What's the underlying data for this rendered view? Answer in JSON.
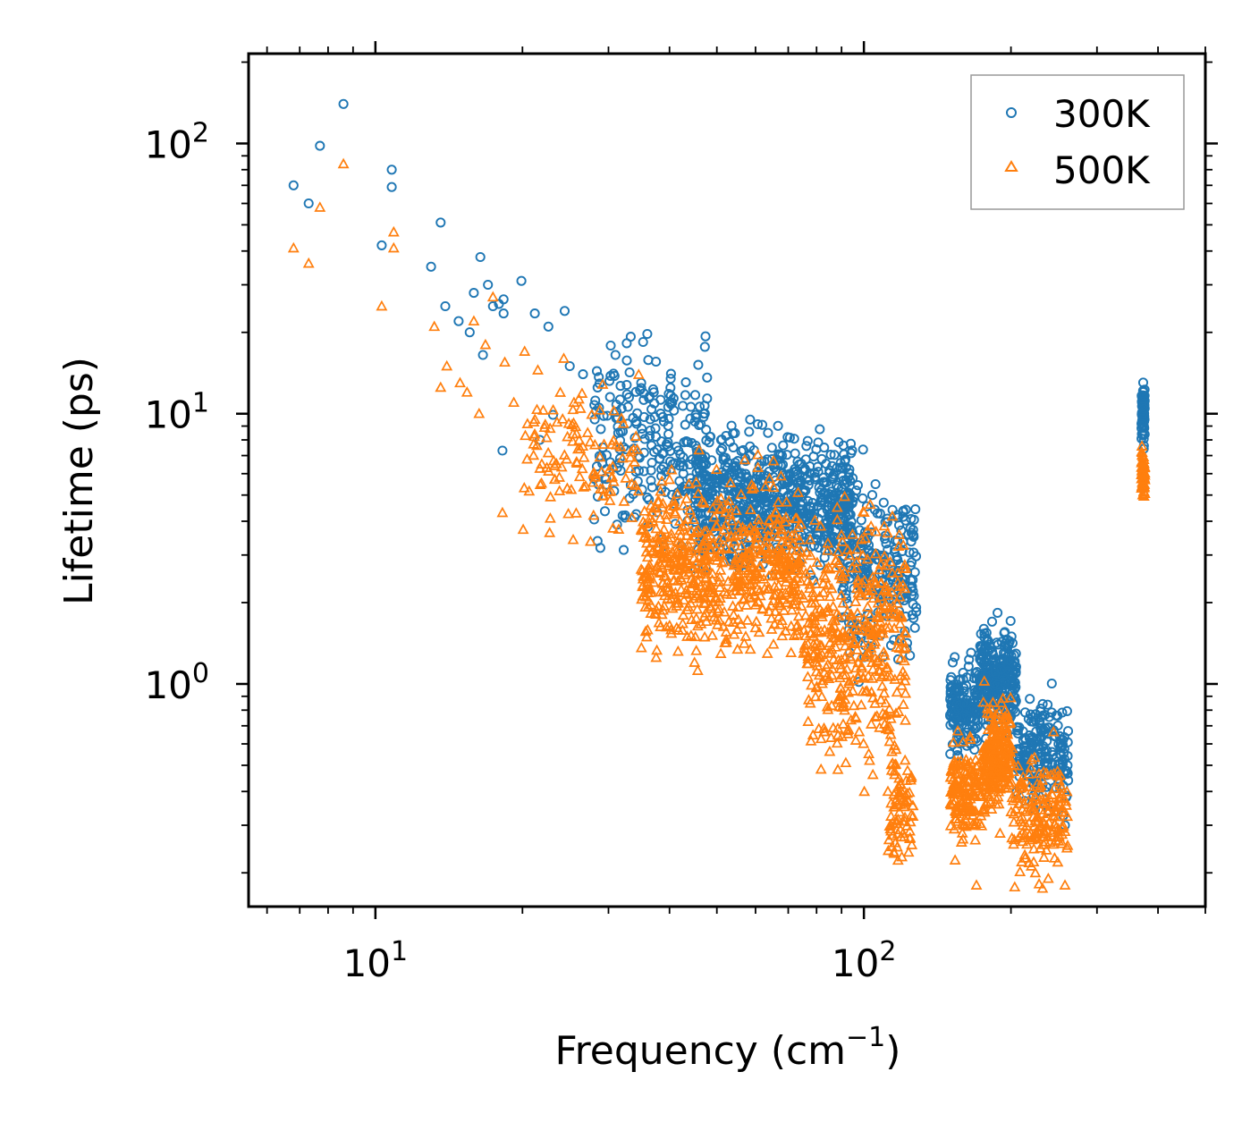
{
  "chart_data": {
    "type": "scatter",
    "title": "",
    "xlabel": "Frequency (cm",
    "xlabel_sup": "−1",
    "xlabel_close": ")",
    "ylabel": "Lifetime (ps)",
    "xscale": "log",
    "yscale": "log",
    "xlim": [
      5.5,
      500
    ],
    "ylim": [
      0.15,
      215
    ],
    "x_ticks": [
      {
        "base": "10",
        "exp": "1",
        "value": 10
      },
      {
        "base": "10",
        "exp": "2",
        "value": 100
      }
    ],
    "y_ticks": [
      {
        "base": "10",
        "exp": "0",
        "value": 1
      },
      {
        "base": "10",
        "exp": "1",
        "value": 10
      },
      {
        "base": "10",
        "exp": "2",
        "value": 100
      }
    ],
    "legend_position": "top-right",
    "series": [
      {
        "name": "300K",
        "marker": "circle",
        "color": "#1f77b4",
        "points": [
          [
            6.8,
            70
          ],
          [
            7.3,
            60
          ],
          [
            7.7,
            98
          ],
          [
            8.6,
            140
          ],
          [
            10.3,
            42
          ],
          [
            10.8,
            80
          ],
          [
            10.8,
            69
          ],
          [
            13.0,
            35
          ],
          [
            13.6,
            51
          ],
          [
            13.9,
            25
          ],
          [
            14.8,
            22
          ],
          [
            15.6,
            20
          ],
          [
            15.9,
            28
          ],
          [
            16.4,
            38
          ],
          [
            16.6,
            16.5
          ],
          [
            17.0,
            30
          ],
          [
            17.4,
            25
          ],
          [
            17.9,
            25.5
          ],
          [
            18.3,
            26.5
          ],
          [
            18.3,
            23.5
          ],
          [
            19.9,
            31
          ],
          [
            21.2,
            23.5
          ],
          [
            22.6,
            21
          ],
          [
            24.4,
            24
          ],
          [
            25.0,
            15
          ],
          [
            26.6,
            14
          ],
          [
            28.5,
            12.5
          ],
          [
            31.0,
            16.5
          ],
          [
            18.2,
            7.3
          ],
          [
            21.7,
            8.0
          ],
          [
            23.1,
            9.9
          ],
          [
            35.0,
            13
          ],
          [
            40.5,
            11
          ],
          [
            47,
            10
          ],
          [
            51,
            8.0
          ],
          [
            58.5,
            7.0
          ],
          [
            68,
            7.0
          ],
          [
            82,
            6.8
          ],
          [
            104,
            5.0
          ],
          [
            152,
            1.2
          ],
          [
            176,
            1.6
          ],
          [
            183,
            1.7
          ],
          [
            228,
            0.55
          ],
          [
            258,
            0.3
          ]
        ],
        "clusters": [
          {
            "x_range": [
              28,
              48
            ],
            "y_center": 7.8,
            "y_spread": 2.4,
            "count": 240
          },
          {
            "x_range": [
              45,
              95
            ],
            "y_center": 4.7,
            "y_spread": 1.8,
            "count": 700
          },
          {
            "x_range": [
              90,
              128
            ],
            "y_center": 2.6,
            "y_spread": 2.2,
            "count": 240
          },
          {
            "x_range": [
              150,
              172
            ],
            "y_center": 0.82,
            "y_spread": 1.45,
            "count": 160
          },
          {
            "x_range": [
              172,
              205
            ],
            "y_center": 1.05,
            "y_spread": 1.55,
            "count": 260
          },
          {
            "x_range": [
              205,
              262
            ],
            "y_center": 0.55,
            "y_spread": 1.6,
            "count": 200
          },
          {
            "x_range": [
              370,
              376
            ],
            "y_center": 10.0,
            "y_spread": 1.3,
            "count": 70
          }
        ]
      },
      {
        "name": "500K",
        "marker": "triangle",
        "color": "#ff7f0e",
        "points": [
          [
            6.8,
            41
          ],
          [
            7.3,
            36
          ],
          [
            7.7,
            58
          ],
          [
            8.6,
            84
          ],
          [
            10.3,
            25
          ],
          [
            10.9,
            47
          ],
          [
            10.9,
            41
          ],
          [
            13.2,
            21
          ],
          [
            13.6,
            12.5
          ],
          [
            14.0,
            15
          ],
          [
            14.9,
            13
          ],
          [
            15.4,
            12
          ],
          [
            15.9,
            22
          ],
          [
            16.3,
            10
          ],
          [
            16.8,
            18
          ],
          [
            17.4,
            27
          ],
          [
            18.2,
            4.3
          ],
          [
            18.4,
            15.5
          ],
          [
            19.2,
            11
          ],
          [
            20.2,
            17
          ],
          [
            21.5,
            14.5
          ],
          [
            22.8,
            4.1
          ],
          [
            24.3,
            16
          ],
          [
            25.5,
            11
          ],
          [
            27.2,
            8.5
          ],
          [
            33.5,
            5.5
          ],
          [
            42,
            4.0
          ],
          [
            45,
            1.2
          ],
          [
            62,
            1.9
          ],
          [
            83,
            1.1
          ],
          [
            112,
            0.4
          ],
          [
            170,
            0.18
          ],
          [
            190,
            0.28
          ],
          [
            258,
            0.18
          ]
        ],
        "clusters": [
          {
            "x_range": [
              20,
              35
            ],
            "y_center": 6.8,
            "y_spread": 2.0,
            "count": 120
          },
          {
            "x_range": [
              35,
              75
            ],
            "y_center": 2.7,
            "y_spread": 2.1,
            "count": 650
          },
          {
            "x_range": [
              75,
              122
            ],
            "y_center": 1.5,
            "y_spread": 3.0,
            "count": 420
          },
          {
            "x_range": [
              112,
              126
            ],
            "y_center": 0.35,
            "y_spread": 1.6,
            "count": 80
          },
          {
            "x_range": [
              150,
              175
            ],
            "y_center": 0.4,
            "y_spread": 1.6,
            "count": 160
          },
          {
            "x_range": [
              175,
              200
            ],
            "y_center": 0.55,
            "y_spread": 1.6,
            "count": 220
          },
          {
            "x_range": [
              200,
              262
            ],
            "y_center": 0.32,
            "y_spread": 1.7,
            "count": 180
          },
          {
            "x_range": [
              370,
              376
            ],
            "y_center": 6.0,
            "y_spread": 1.25,
            "count": 60
          }
        ]
      }
    ]
  }
}
